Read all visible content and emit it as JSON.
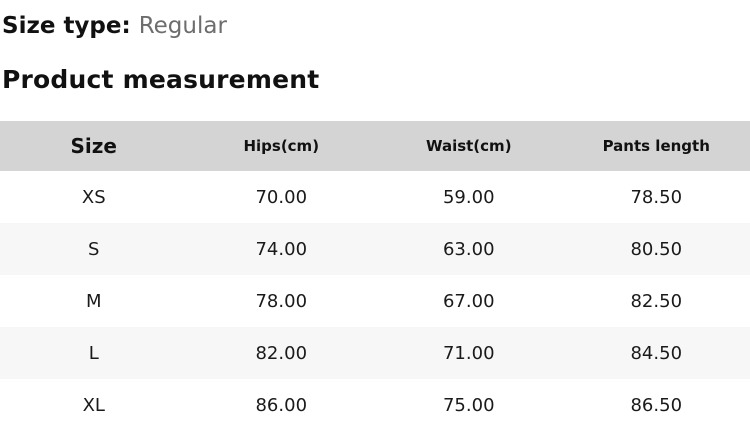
{
  "size_type": {
    "label": "Size type:",
    "value": "Regular"
  },
  "section_title": "Product measurement",
  "table": {
    "columns": [
      "Size",
      "Hips(cm)",
      "Waist(cm)",
      "Pants length"
    ],
    "rows": [
      {
        "size": "XS",
        "hips": "70.00",
        "waist": "59.00",
        "pants_length": "78.50"
      },
      {
        "size": "S",
        "hips": "74.00",
        "waist": "63.00",
        "pants_length": "80.50"
      },
      {
        "size": "M",
        "hips": "78.00",
        "waist": "67.00",
        "pants_length": "82.50"
      },
      {
        "size": "L",
        "hips": "82.00",
        "waist": "71.00",
        "pants_length": "84.50"
      },
      {
        "size": "XL",
        "hips": "86.00",
        "waist": "75.00",
        "pants_length": "86.50"
      }
    ]
  },
  "colors": {
    "header_bg": "#d4d4d4",
    "stripe_bg": "#f7f7f7",
    "text": "#1a1a1a",
    "muted_text": "#6d6d6d"
  }
}
